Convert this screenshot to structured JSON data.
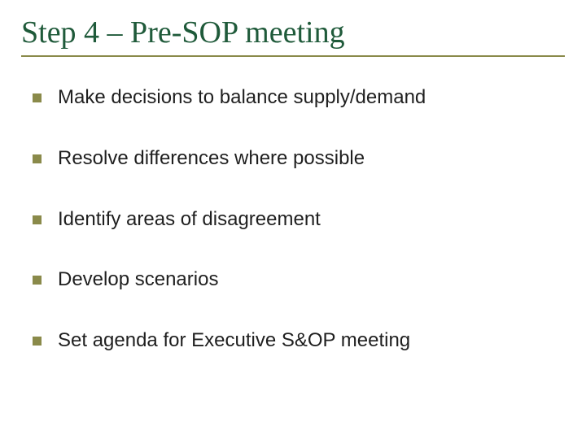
{
  "slide": {
    "title": "Step 4 – Pre-SOP meeting",
    "title_color": "#1f5a3a",
    "title_fontsize": 38,
    "underline_color": "#8a8a4a",
    "bullet_color": "#8a8a4a",
    "text_color": "#1f1f1f",
    "body_fontsize": 24,
    "bullets": [
      "Make decisions to balance supply/demand",
      "Resolve differences where possible",
      "Identify areas of disagreement",
      "Develop scenarios",
      "Set agenda for Executive S&OP meeting"
    ]
  }
}
